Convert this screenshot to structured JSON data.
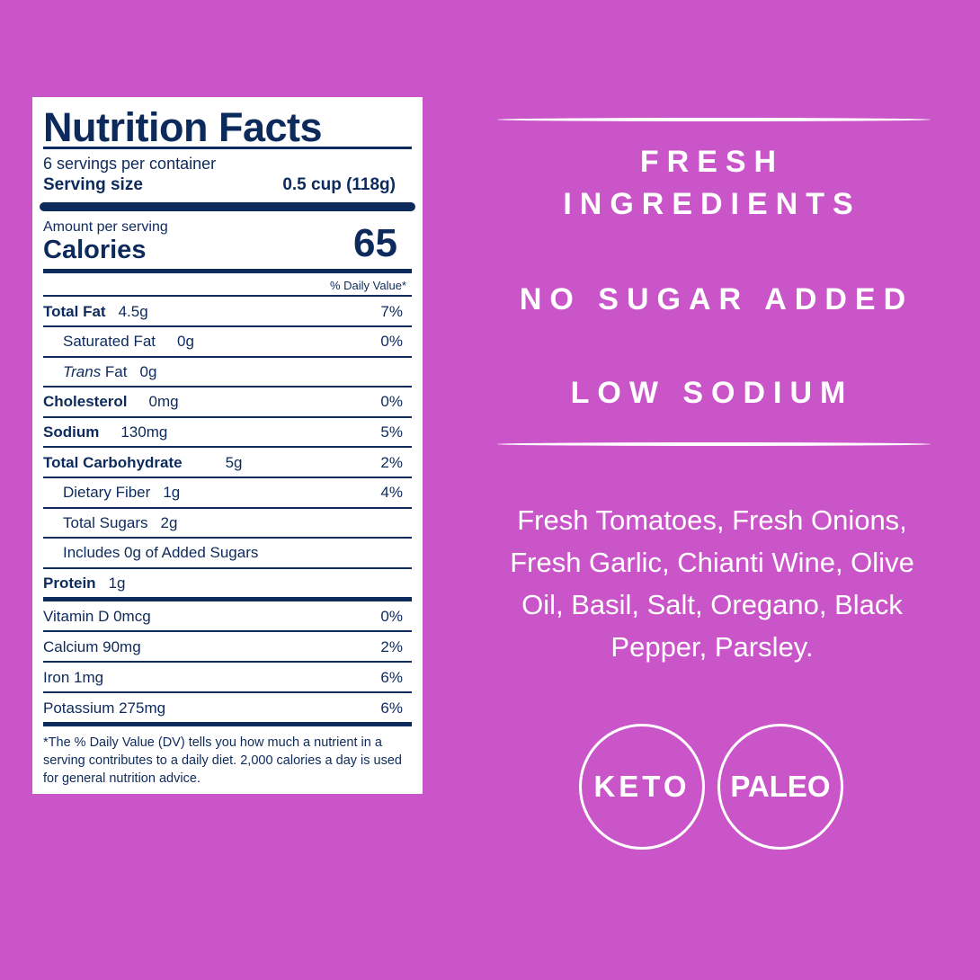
{
  "label": {
    "title": "Nutrition Facts",
    "servings": "6 servings per container",
    "serving_size_label": "Serving size",
    "serving_size_value": "0.5 cup (118g)",
    "amount_per_serving": "Amount per serving",
    "calories_label": "Calories",
    "calories_value": "65",
    "dv_header": "% Daily Value*",
    "nutrients": [
      {
        "name": "Total Fat",
        "amount": "4.5g",
        "dv": "7%",
        "bold": true,
        "indent": false
      },
      {
        "name": "Saturated Fat",
        "amount": "0g",
        "dv": "0%",
        "bold": false,
        "indent": true
      },
      {
        "name": "Trans Fat",
        "amount": "0g",
        "dv": "",
        "bold": false,
        "indent": true,
        "italic_prefix": true
      },
      {
        "name": "Cholesterol",
        "amount": "0mg",
        "dv": "0%",
        "bold": true,
        "indent": false
      },
      {
        "name": "Sodium",
        "amount": "130mg",
        "dv": "5%",
        "bold": true,
        "indent": false
      },
      {
        "name": "Total Carbohydrate",
        "amount": "5g",
        "dv": "2%",
        "bold": true,
        "indent": false
      },
      {
        "name": "Dietary Fiber",
        "amount": "1g",
        "dv": "4%",
        "bold": false,
        "indent": true
      },
      {
        "name": "Total Sugars",
        "amount": "2g",
        "dv": "",
        "bold": false,
        "indent": true
      },
      {
        "name": "Includes 0g of Added Sugars",
        "amount": "",
        "dv": "",
        "bold": false,
        "indent": true
      },
      {
        "name": "Protein",
        "amount": "1g",
        "dv": "",
        "bold": true,
        "indent": false
      }
    ],
    "vitamins": [
      {
        "name": "Vitamin D 0mcg",
        "dv": "0%"
      },
      {
        "name": "Calcium 90mg",
        "dv": "2%"
      },
      {
        "name": "Iron 1mg",
        "dv": "6%"
      },
      {
        "name": "Potassium 275mg",
        "dv": "6%"
      }
    ],
    "footnote": "*The % Daily Value (DV) tells you how much a nutrient in a serving contributes to a daily diet. 2,000 calories a day is used for general nutrition advice."
  },
  "claims": [
    "FRESH INGREDIENTS",
    "NO SUGAR ADDED",
    "LOW SODIUM"
  ],
  "ingredients": "Fresh Tomatoes, Fresh Onions, Fresh Garlic, Chianti Wine, Olive Oil, Basil, Salt, Oregano, Black Pepper, Parsley.",
  "badges": [
    "KETO",
    "PALEO"
  ],
  "colors": {
    "background": "#c955c9",
    "label_text": "#0d2a5c",
    "white": "#ffffff"
  }
}
